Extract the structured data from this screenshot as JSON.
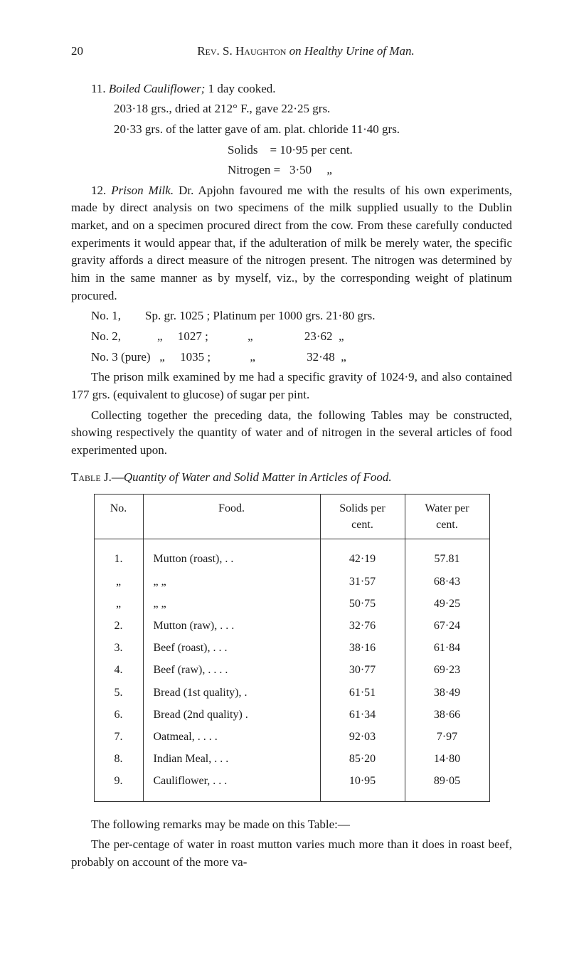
{
  "page_number": "20",
  "running_title_author": "Rev. S. Haughton",
  "running_title_on": "on",
  "running_title_subject": "Healthy Urine of Man.",
  "item11_title": "11. ",
  "item11_name": "Boiled Cauliflower;",
  "item11_rest": " 1 day cooked.",
  "item11_line2": "203·18 grs., dried at 212° F., gave 22·25 grs.",
  "item11_line3": "20·33 grs. of the latter gave of am. plat. chloride 11·40 grs.",
  "item11_line4": "Solids    = 10·95 per cent.",
  "item11_line5": "Nitrogen =   3·50     „",
  "item12_title": "12. ",
  "item12_name": "Prison Milk.",
  "item12_body": " Dr. Apjohn favoured me with the results of his own experiments, made by direct analysis on two specimens of the milk supplied usually to the Dublin market, and on a specimen procured direct from the cow. From these carefully conducted experiments it would appear that, if the adulteration of milk be merely water, the specific gravity affords a direct measure of the nitrogen present. The nitrogen was determined by him in the same manner as by myself, viz., by the corresponding weight of platinum procured.",
  "milk_row1": "No. 1,        Sp. gr. 1025 ; Platinum per 1000 grs. 21·80 grs.",
  "milk_row2": "No. 2,            „     1027 ;             „                 23·62  „",
  "milk_row3": "No. 3 (pure)   „     1035 ;             „                 32·48  „",
  "milk_para2": "The prison milk examined by me had a specific gravity of 1024·9, and also contained 177 grs. (equivalent to glucose) of sugar per pint.",
  "collect_para": "Collecting together the preceding data, the following Tables may be constructed, showing respectively the quantity of water and of nitrogen in the several articles of food experimented upon.",
  "table_caption_prefix": "Table J.—",
  "table_caption_rest": "Quantity of Water and Solid Matter in Articles of Food.",
  "table": {
    "headers": [
      "No.",
      "Food.",
      "Solids per cent.",
      "Water per cent."
    ],
    "rows": [
      [
        "1.",
        "Mutton (roast), . .",
        "42·19",
        "57.81"
      ],
      [
        "„",
        "„       „",
        "31·57",
        "68·43"
      ],
      [
        "„",
        "„       „",
        "50·75",
        "49·25"
      ],
      [
        "2.",
        "Mutton (raw), . . .",
        "32·76",
        "67·24"
      ],
      [
        "3.",
        "Beef (roast),   . . .",
        "38·16",
        "61·84"
      ],
      [
        "4.",
        "Beef (raw), . . . .",
        "30·77",
        "69·23"
      ],
      [
        "5.",
        "Bread (1st quality), .",
        "61·51",
        "38·49"
      ],
      [
        "6.",
        "Bread (2nd quality) .",
        "61·34",
        "38·66"
      ],
      [
        "7.",
        "Oatmeal,   . . . .",
        "92·03",
        "7·97"
      ],
      [
        "8.",
        "Indian Meal, . . .",
        "85·20",
        "14·80"
      ],
      [
        "9.",
        "Cauliflower,  . . .",
        "10·95",
        "89·05"
      ]
    ]
  },
  "closing_para": "The following remarks may be made on this Table:—",
  "closing_para2": "The per-centage of water in roast mutton varies much more than it does in roast beef, probably on account of the more va-"
}
